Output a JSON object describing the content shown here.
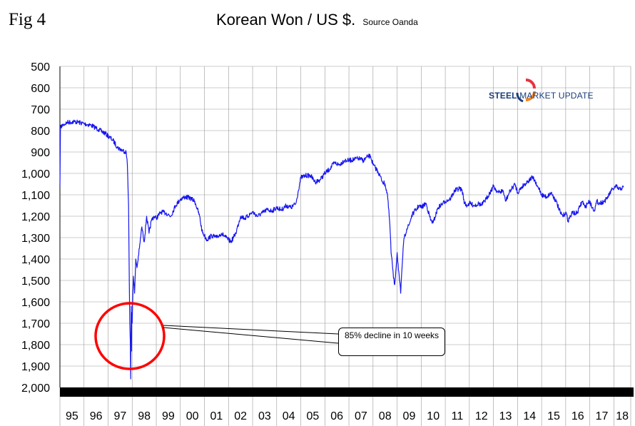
{
  "figure_label": "Fig 4",
  "title": "Korean Won / US $.",
  "source": "Source Oanda",
  "logo": {
    "word1": "STEEL",
    "word2": " MARKET UPDATE",
    "colors": [
      "#e7343f",
      "#f58220",
      "#1b3d7a"
    ]
  },
  "annotation": {
    "text": "85% decline in 10 weeks"
  },
  "colors": {
    "series": "#1616f0",
    "circle": "#ff0000",
    "grid": "#999999",
    "axis_bar": "#000000"
  },
  "chart_data": {
    "type": "line",
    "title": "Korean Won / US $.",
    "y_inverted": true,
    "ylim": [
      500,
      2000
    ],
    "yticks": [
      "500",
      "600",
      "700",
      "800",
      "900",
      "1,000",
      "1,100",
      "1,200",
      "1,300",
      "1,400",
      "1,500",
      "1,600",
      "1,700",
      "1,800",
      "1,900",
      "2,000"
    ],
    "xlim": [
      1995.0,
      2018.7
    ],
    "xticks": [
      "95",
      "96",
      "97",
      "98",
      "99",
      "00",
      "01",
      "02",
      "03",
      "04",
      "05",
      "06",
      "07",
      "08",
      "09",
      "10",
      "11",
      "12",
      "13",
      "14",
      "15",
      "16",
      "17",
      "18"
    ],
    "grid": true,
    "series": [
      {
        "x": [
          1995.0,
          1995.02,
          1995.05,
          1995.15,
          1995.3,
          1995.6,
          1995.8,
          1996.0,
          1996.3,
          1996.6,
          1996.9,
          1997.2,
          1997.4,
          1997.6,
          1997.75,
          1997.8,
          1997.85,
          1997.88,
          1997.9,
          1997.92,
          1997.94,
          1997.96,
          1997.97,
          1997.98,
          1998.0,
          1998.02,
          1998.05,
          1998.1,
          1998.15,
          1998.2,
          1998.3,
          1998.4,
          1998.5,
          1998.6,
          1998.7,
          1998.8,
          1998.9,
          1999.0,
          1999.2,
          1999.4,
          1999.6,
          1999.8,
          2000.0,
          2000.2,
          2000.4,
          2000.6,
          2000.8,
          2000.9,
          2001.0,
          2001.1,
          2001.3,
          2001.5,
          2001.7,
          2001.9,
          2002.1,
          2002.3,
          2002.5,
          2002.7,
          2002.9,
          2003.0,
          2003.2,
          2003.4,
          2003.6,
          2003.8,
          2004.0,
          2004.2,
          2004.4,
          2004.6,
          2004.8,
          2004.9,
          2005.0,
          2005.2,
          2005.4,
          2005.6,
          2005.8,
          2006.0,
          2006.2,
          2006.4,
          2006.6,
          2006.8,
          2007.0,
          2007.2,
          2007.4,
          2007.6,
          2007.8,
          2007.9,
          2008.0,
          2008.2,
          2008.4,
          2008.5,
          2008.6,
          2008.7,
          2008.75,
          2008.8,
          2008.85,
          2008.9,
          2008.95,
          2009.0,
          2009.1,
          2009.15,
          2009.2,
          2009.25,
          2009.3,
          2009.4,
          2009.5,
          2009.6,
          2009.7,
          2009.8,
          2009.9,
          2010.0,
          2010.2,
          2010.4,
          2010.5,
          2010.7,
          2010.9,
          2011.0,
          2011.2,
          2011.4,
          2011.6,
          2011.7,
          2011.8,
          2011.9,
          2012.0,
          2012.2,
          2012.4,
          2012.5,
          2012.7,
          2012.9,
          2013.0,
          2013.2,
          2013.4,
          2013.5,
          2013.7,
          2013.9,
          2014.0,
          2014.2,
          2014.4,
          2014.6,
          2014.7,
          2014.8,
          2014.9,
          2015.0,
          2015.2,
          2015.4,
          2015.5,
          2015.6,
          2015.7,
          2015.8,
          2015.9,
          2016.0,
          2016.1,
          2016.2,
          2016.3,
          2016.4,
          2016.5,
          2016.6,
          2016.7,
          2016.8,
          2016.9,
          2017.0,
          2017.1,
          2017.2,
          2017.3,
          2017.4,
          2017.5,
          2017.6,
          2017.7,
          2017.8,
          2017.9,
          2018.0,
          2018.1,
          2018.2,
          2018.3,
          2018.4
        ],
        "y": [
          1060,
          790,
          780,
          772,
          762,
          758,
          762,
          768,
          775,
          795,
          815,
          845,
          880,
          893,
          900,
          960,
          1150,
          1500,
          1700,
          1780,
          1960,
          1620,
          1830,
          1650,
          1700,
          1600,
          1480,
          1560,
          1400,
          1440,
          1350,
          1250,
          1320,
          1200,
          1280,
          1220,
          1200,
          1210,
          1180,
          1185,
          1200,
          1150,
          1120,
          1110,
          1115,
          1130,
          1200,
          1270,
          1290,
          1310,
          1290,
          1300,
          1280,
          1300,
          1320,
          1280,
          1200,
          1210,
          1190,
          1180,
          1200,
          1185,
          1170,
          1175,
          1160,
          1170,
          1150,
          1160,
          1140,
          1080,
          1020,
          1010,
          1010,
          1040,
          1030,
          1000,
          980,
          950,
          960,
          940,
          940,
          935,
          930,
          940,
          920,
          920,
          960,
          990,
          1040,
          1050,
          1100,
          1240,
          1370,
          1420,
          1490,
          1520,
          1450,
          1370,
          1500,
          1560,
          1450,
          1350,
          1300,
          1260,
          1240,
          1200,
          1180,
          1170,
          1150,
          1160,
          1140,
          1220,
          1230,
          1160,
          1140,
          1130,
          1120,
          1080,
          1070,
          1080,
          1140,
          1150,
          1140,
          1150,
          1140,
          1150,
          1120,
          1080,
          1060,
          1090,
          1080,
          1130,
          1080,
          1050,
          1090,
          1060,
          1040,
          1020,
          1030,
          1060,
          1070,
          1100,
          1110,
          1090,
          1110,
          1130,
          1160,
          1190,
          1200,
          1180,
          1220,
          1200,
          1180,
          1190,
          1180,
          1150,
          1130,
          1160,
          1140,
          1130,
          1160,
          1170,
          1130,
          1140,
          1135,
          1130,
          1120,
          1100,
          1080,
          1070,
          1060,
          1075,
          1070,
          1065
        ]
      }
    ],
    "annotations": [
      "85% decline in 10 weeks"
    ]
  }
}
